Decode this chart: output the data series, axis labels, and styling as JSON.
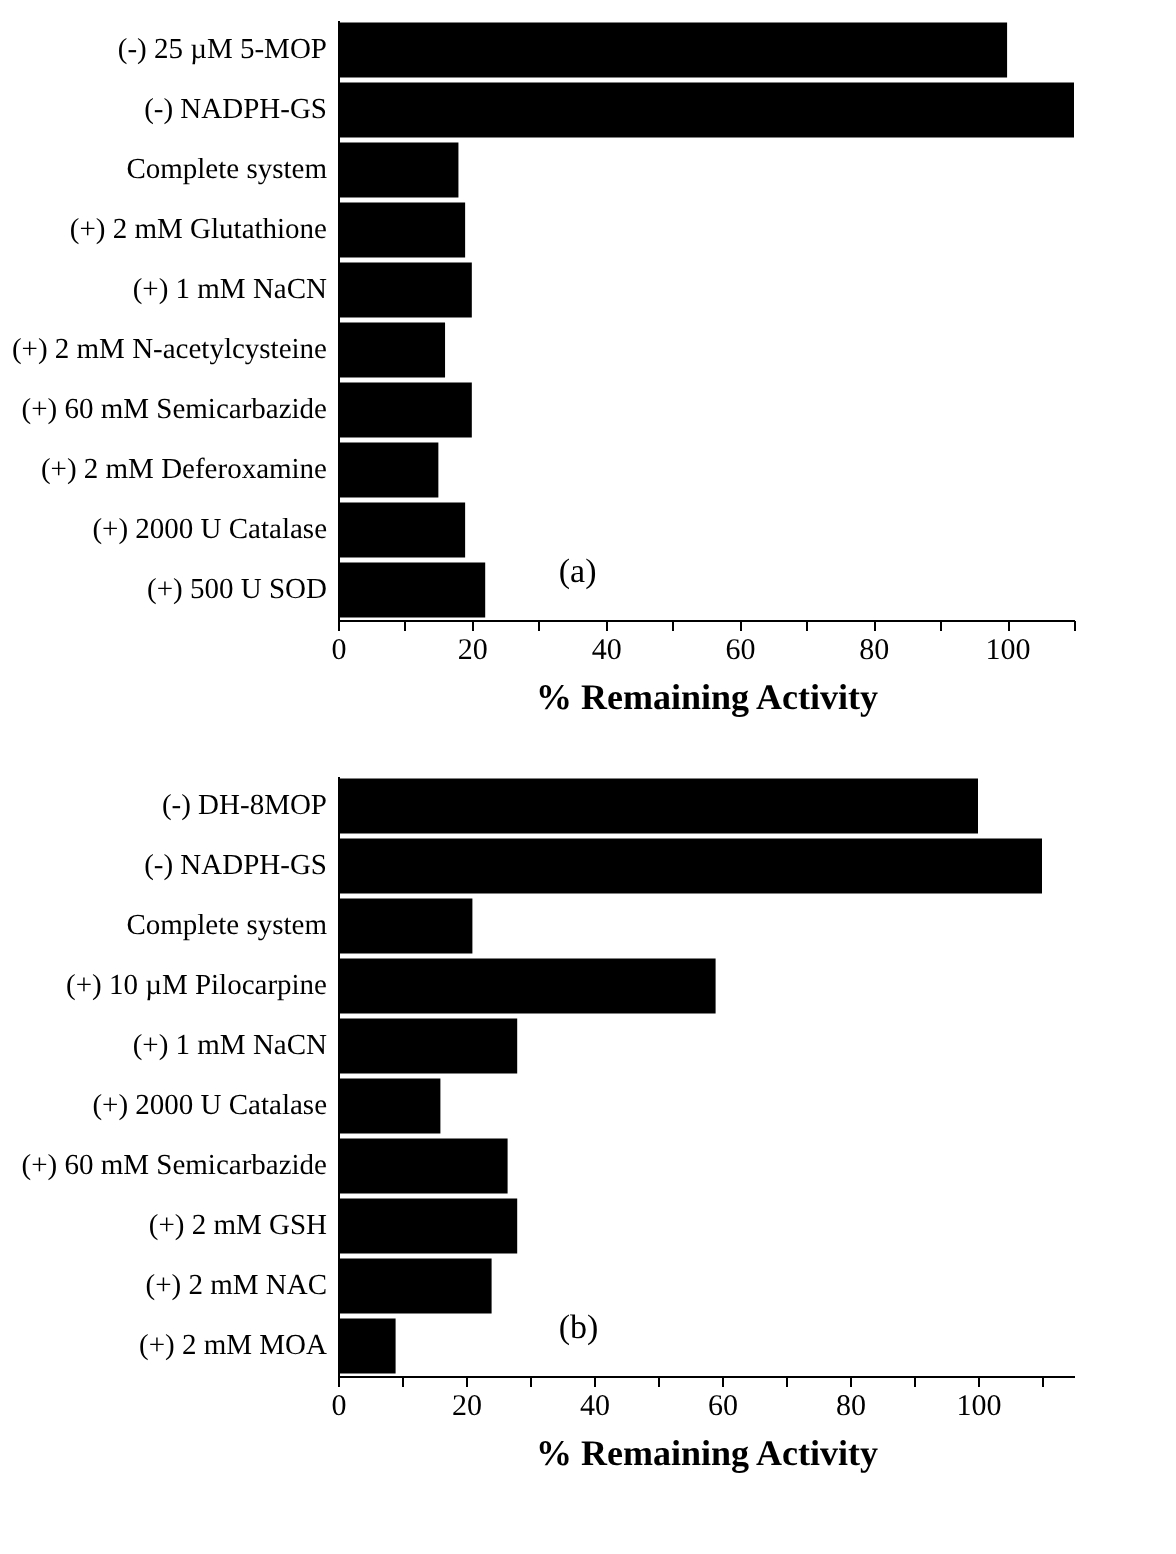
{
  "chart_data": [
    {
      "type": "bar",
      "orientation": "horizontal",
      "xlabel": "% Remaining Activity",
      "categories": [
        "(-) 25 µM 5-MOP",
        "(-) NADPH-GS",
        "Complete system",
        "(+) 2 mM Glutathione",
        "(+) 1 mM NaCN",
        "(+) 2 mM N-acetylcysteine",
        "(+) 60 mM Semicarbazide",
        "(+) 2 mM Deferoxamine",
        "(+) 2000 U Catalase",
        "(+) 500 U SOD"
      ],
      "values": [
        100,
        110,
        18,
        19,
        20,
        16,
        20,
        15,
        19,
        22
      ],
      "color": "#000000",
      "xlim": [
        0,
        110
      ],
      "xticks": [
        0,
        {
          "value": 10,
          "label": null
        },
        20,
        {
          "value": 30,
          "label": null
        },
        40,
        {
          "value": 50,
          "label": null
        },
        60,
        {
          "value": 70,
          "label": null
        },
        80,
        {
          "value": 90,
          "label": null
        },
        100,
        {
          "value": 110,
          "label": null
        }
      ],
      "annotations": [
        "(a)"
      ],
      "grid": false
    },
    {
      "type": "bar",
      "orientation": "horizontal",
      "xlabel": "% Remaining Activity",
      "categories": [
        "(-) DH-8MOP",
        "(-) NADPH-GS",
        "Complete system",
        "(+) 10 µM Pilocarpine",
        "(+) 1 mM NaCN",
        "(+) 2000 U Catalase",
        "(+) 60 mM Semicarbazide",
        "(+) 2 mM GSH",
        "(+) 2 mM NAC",
        "(+) 2 mM MOA"
      ],
      "values": [
        100,
        110,
        21,
        59,
        28,
        16,
        26.5,
        28,
        24,
        9
      ],
      "color": "#000000",
      "xlim": [
        0,
        115
      ],
      "xticks": [
        0,
        {
          "value": 10,
          "label": null
        },
        20,
        {
          "value": 30,
          "label": null
        },
        40,
        {
          "value": 50,
          "label": null
        },
        60,
        {
          "value": 70,
          "label": null
        },
        80,
        {
          "value": 90,
          "label": null
        },
        100,
        {
          "value": 110,
          "label": null
        }
      ],
      "annotations": [
        "(b)"
      ],
      "grid": false
    }
  ]
}
